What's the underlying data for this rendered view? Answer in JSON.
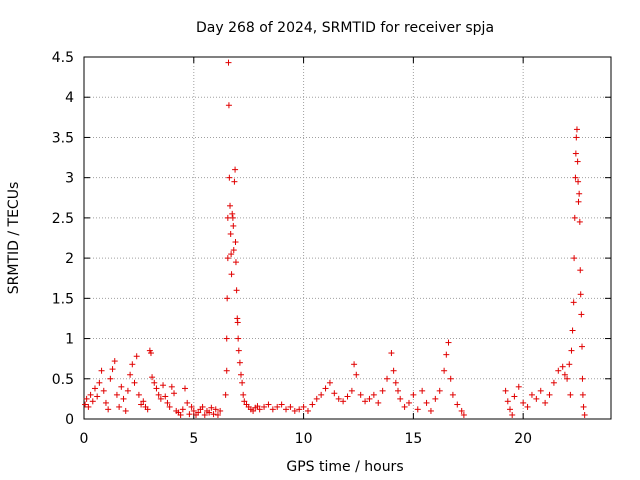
{
  "chart_data": {
    "type": "scatter",
    "title": "Day 268 of 2024, SRMTID for receiver spja",
    "xlabel": "GPS time / hours",
    "ylabel": "SRMTID / TECUs",
    "xlim": [
      0,
      24
    ],
    "ylim": [
      0,
      4.5
    ],
    "x_ticks": [
      0,
      5,
      10,
      15,
      20
    ],
    "x_tick_labels": [
      "0",
      "5",
      "10",
      "15",
      "20"
    ],
    "y_ticks": [
      0,
      0.5,
      1,
      1.5,
      2,
      2.5,
      3,
      3.5,
      4,
      4.5
    ],
    "y_tick_labels": [
      "0",
      "0.5",
      "1",
      "1.5",
      "2",
      "2.5",
      "3",
      "3.5",
      "4",
      "4.5"
    ],
    "grid": true,
    "marker": "+",
    "series": [
      {
        "name": "SRMTID",
        "color": "#e00000",
        "points": [
          [
            0.05,
            0.18
          ],
          [
            0.12,
            0.25
          ],
          [
            0.2,
            0.15
          ],
          [
            0.3,
            0.3
          ],
          [
            0.4,
            0.22
          ],
          [
            0.5,
            0.38
          ],
          [
            0.6,
            0.28
          ],
          [
            0.7,
            0.45
          ],
          [
            0.8,
            0.6
          ],
          [
            0.9,
            0.35
          ],
          [
            1.0,
            0.2
          ],
          [
            1.1,
            0.12
          ],
          [
            1.2,
            0.5
          ],
          [
            1.3,
            0.62
          ],
          [
            1.4,
            0.72
          ],
          [
            1.5,
            0.3
          ],
          [
            1.6,
            0.15
          ],
          [
            1.7,
            0.4
          ],
          [
            1.8,
            0.25
          ],
          [
            1.9,
            0.1
          ],
          [
            2.0,
            0.35
          ],
          [
            2.1,
            0.55
          ],
          [
            2.2,
            0.68
          ],
          [
            2.3,
            0.45
          ],
          [
            2.4,
            0.78
          ],
          [
            2.5,
            0.3
          ],
          [
            2.6,
            0.18
          ],
          [
            2.7,
            0.22
          ],
          [
            2.8,
            0.15
          ],
          [
            2.9,
            0.12
          ],
          [
            3.0,
            0.85
          ],
          [
            3.05,
            0.82
          ],
          [
            3.1,
            0.52
          ],
          [
            3.2,
            0.45
          ],
          [
            3.3,
            0.38
          ],
          [
            3.4,
            0.3
          ],
          [
            3.5,
            0.25
          ],
          [
            3.6,
            0.42
          ],
          [
            3.7,
            0.28
          ],
          [
            3.8,
            0.2
          ],
          [
            3.9,
            0.15
          ],
          [
            4.0,
            0.4
          ],
          [
            4.1,
            0.32
          ],
          [
            4.2,
            0.1
          ],
          [
            4.3,
            0.08
          ],
          [
            4.4,
            0.05
          ],
          [
            4.5,
            0.12
          ],
          [
            4.6,
            0.38
          ],
          [
            4.7,
            0.2
          ],
          [
            4.8,
            0.06
          ],
          [
            4.9,
            0.15
          ],
          [
            5.0,
            0.1
          ],
          [
            5.1,
            0.05
          ],
          [
            5.2,
            0.08
          ],
          [
            5.3,
            0.12
          ],
          [
            5.4,
            0.15
          ],
          [
            5.5,
            0.05
          ],
          [
            5.6,
            0.1
          ],
          [
            5.7,
            0.08
          ],
          [
            5.8,
            0.14
          ],
          [
            5.9,
            0.06
          ],
          [
            6.0,
            0.12
          ],
          [
            6.1,
            0.05
          ],
          [
            6.2,
            0.1
          ],
          [
            6.45,
            0.3
          ],
          [
            6.5,
            0.6
          ],
          [
            6.5,
            1.0
          ],
          [
            6.52,
            1.5
          ],
          [
            6.55,
            2.0
          ],
          [
            6.55,
            2.5
          ],
          [
            6.58,
            4.43
          ],
          [
            6.6,
            3.9
          ],
          [
            6.62,
            3.0
          ],
          [
            6.65,
            2.65
          ],
          [
            6.68,
            2.3
          ],
          [
            6.7,
            2.05
          ],
          [
            6.72,
            1.8
          ],
          [
            6.75,
            2.55
          ],
          [
            6.78,
            2.5
          ],
          [
            6.8,
            2.4
          ],
          [
            6.82,
            2.1
          ],
          [
            6.85,
            2.95
          ],
          [
            6.88,
            3.1
          ],
          [
            6.9,
            2.2
          ],
          [
            6.92,
            1.95
          ],
          [
            6.95,
            1.6
          ],
          [
            6.98,
            1.25
          ],
          [
            7.0,
            1.2
          ],
          [
            7.02,
            1.0
          ],
          [
            7.05,
            0.85
          ],
          [
            7.1,
            0.7
          ],
          [
            7.15,
            0.55
          ],
          [
            7.2,
            0.45
          ],
          [
            7.25,
            0.3
          ],
          [
            7.3,
            0.22
          ],
          [
            7.4,
            0.18
          ],
          [
            7.5,
            0.15
          ],
          [
            7.6,
            0.12
          ],
          [
            7.7,
            0.1
          ],
          [
            7.8,
            0.14
          ],
          [
            7.9,
            0.16
          ],
          [
            8.0,
            0.12
          ],
          [
            8.2,
            0.15
          ],
          [
            8.4,
            0.18
          ],
          [
            8.6,
            0.12
          ],
          [
            8.8,
            0.15
          ],
          [
            9.0,
            0.18
          ],
          [
            9.2,
            0.12
          ],
          [
            9.4,
            0.15
          ],
          [
            9.6,
            0.1
          ],
          [
            9.8,
            0.12
          ],
          [
            10.0,
            0.15
          ],
          [
            10.2,
            0.1
          ],
          [
            10.4,
            0.18
          ],
          [
            10.6,
            0.25
          ],
          [
            10.8,
            0.3
          ],
          [
            11.0,
            0.38
          ],
          [
            11.2,
            0.45
          ],
          [
            11.4,
            0.32
          ],
          [
            11.6,
            0.25
          ],
          [
            11.8,
            0.22
          ],
          [
            12.0,
            0.28
          ],
          [
            12.2,
            0.35
          ],
          [
            12.3,
            0.68
          ],
          [
            12.4,
            0.55
          ],
          [
            12.6,
            0.3
          ],
          [
            12.8,
            0.22
          ],
          [
            13.0,
            0.25
          ],
          [
            13.2,
            0.3
          ],
          [
            13.4,
            0.2
          ],
          [
            13.6,
            0.35
          ],
          [
            13.8,
            0.5
          ],
          [
            14.0,
            0.82
          ],
          [
            14.1,
            0.6
          ],
          [
            14.2,
            0.45
          ],
          [
            14.3,
            0.35
          ],
          [
            14.4,
            0.25
          ],
          [
            14.6,
            0.15
          ],
          [
            14.8,
            0.2
          ],
          [
            15.0,
            0.3
          ],
          [
            15.2,
            0.12
          ],
          [
            15.4,
            0.35
          ],
          [
            15.6,
            0.2
          ],
          [
            15.8,
            0.1
          ],
          [
            16.0,
            0.25
          ],
          [
            16.2,
            0.35
          ],
          [
            16.4,
            0.6
          ],
          [
            16.5,
            0.8
          ],
          [
            16.6,
            0.95
          ],
          [
            16.7,
            0.5
          ],
          [
            16.8,
            0.3
          ],
          [
            17.0,
            0.18
          ],
          [
            17.2,
            0.1
          ],
          [
            17.3,
            0.05
          ],
          [
            19.2,
            0.35
          ],
          [
            19.3,
            0.22
          ],
          [
            19.4,
            0.12
          ],
          [
            19.5,
            0.05
          ],
          [
            19.6,
            0.28
          ],
          [
            19.8,
            0.4
          ],
          [
            20.0,
            0.2
          ],
          [
            20.2,
            0.15
          ],
          [
            20.4,
            0.3
          ],
          [
            20.6,
            0.25
          ],
          [
            20.8,
            0.35
          ],
          [
            21.0,
            0.2
          ],
          [
            21.2,
            0.3
          ],
          [
            21.4,
            0.45
          ],
          [
            21.6,
            0.6
          ],
          [
            21.8,
            0.65
          ],
          [
            21.9,
            0.55
          ],
          [
            22.0,
            0.5
          ],
          [
            22.1,
            0.68
          ],
          [
            22.15,
            0.3
          ],
          [
            22.2,
            0.85
          ],
          [
            22.25,
            1.1
          ],
          [
            22.3,
            1.45
          ],
          [
            22.32,
            2.0
          ],
          [
            22.35,
            2.5
          ],
          [
            22.38,
            3.0
          ],
          [
            22.4,
            3.3
          ],
          [
            22.42,
            3.5
          ],
          [
            22.45,
            3.6
          ],
          [
            22.48,
            3.2
          ],
          [
            22.5,
            2.95
          ],
          [
            22.52,
            2.7
          ],
          [
            22.55,
            2.8
          ],
          [
            22.58,
            2.45
          ],
          [
            22.6,
            1.85
          ],
          [
            22.62,
            1.55
          ],
          [
            22.65,
            1.3
          ],
          [
            22.68,
            0.9
          ],
          [
            22.7,
            0.5
          ],
          [
            22.72,
            0.3
          ],
          [
            22.75,
            0.15
          ],
          [
            22.8,
            0.05
          ]
        ]
      }
    ]
  }
}
